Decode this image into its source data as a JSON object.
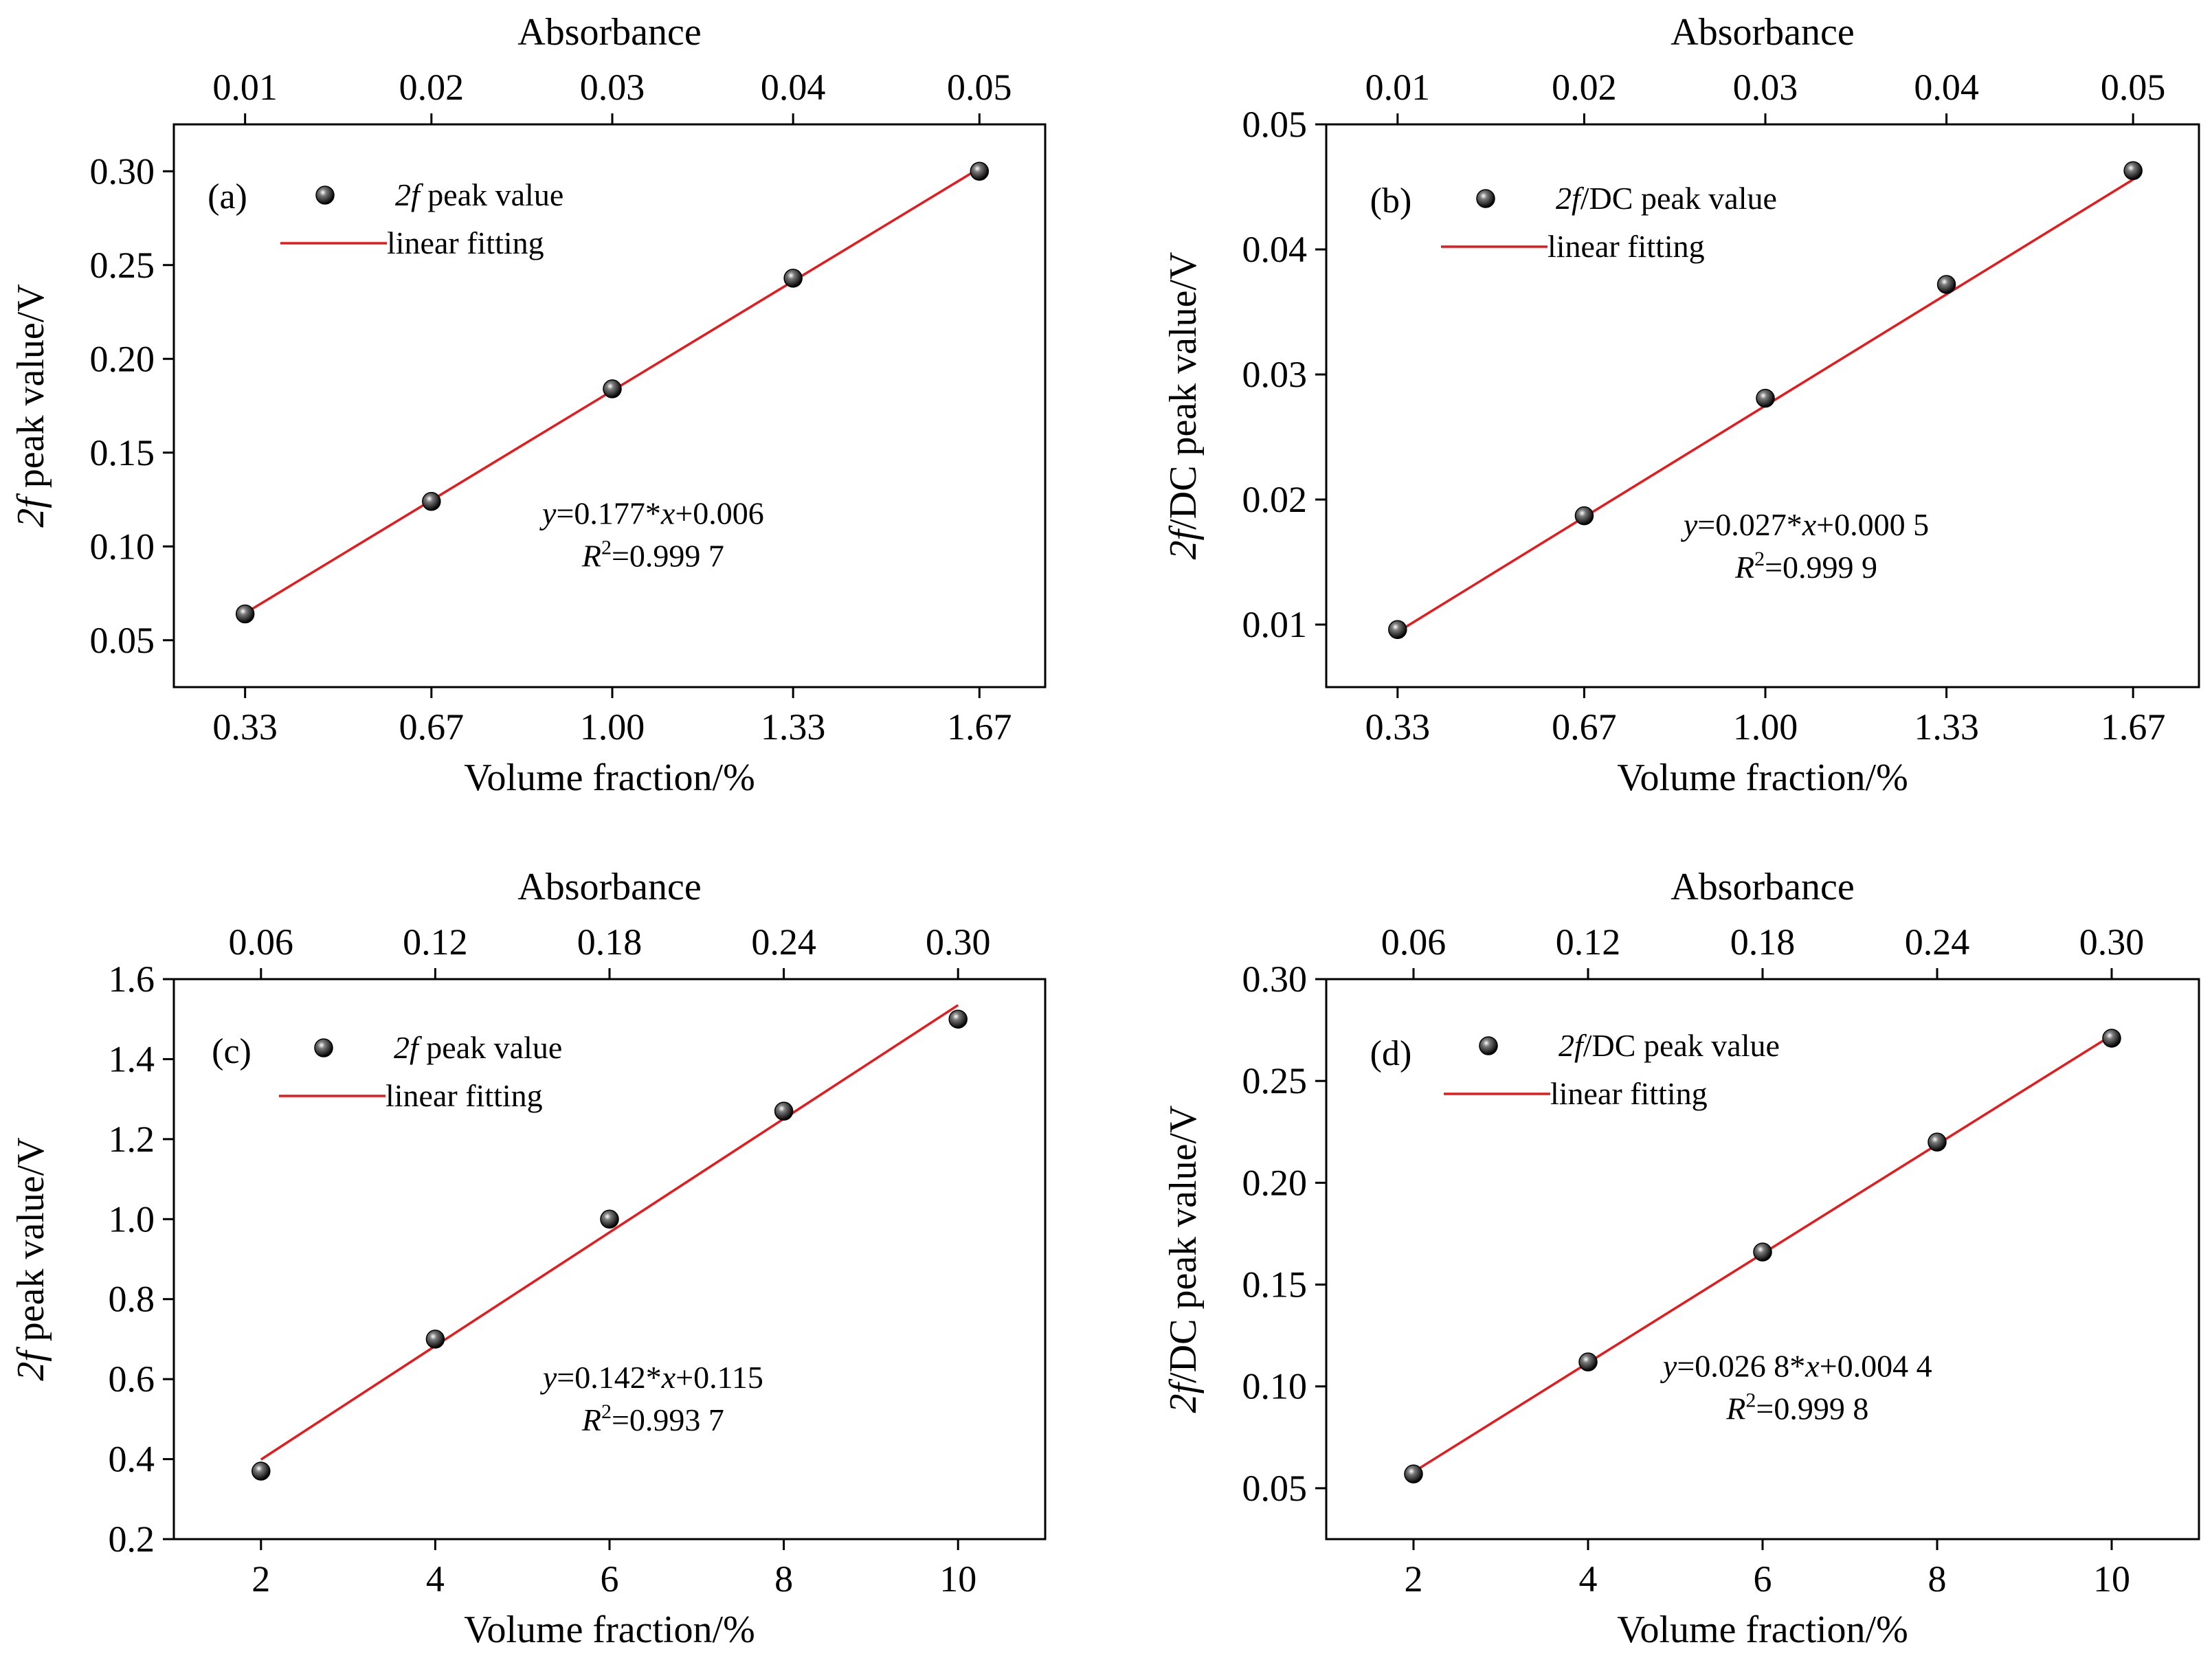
{
  "chart_data": [
    {
      "type": "scatter",
      "panel_label": "(a)",
      "xlabel": "Volume fraction/%",
      "ylabel": "2f peak value/V",
      "ylabel_italic": "2f",
      "ylabel_rest": " peak value/V",
      "top_xlabel": "Absorbance",
      "x_ticks": [
        0.33,
        0.67,
        1.0,
        1.33,
        1.67
      ],
      "x_tick_labels": [
        "0.33",
        "0.67",
        "1.00",
        "1.33",
        "1.67"
      ],
      "xlim": [
        0.2,
        1.79
      ],
      "top_tick_labels": [
        "0.01",
        "0.02",
        "0.03",
        "0.04",
        "0.05"
      ],
      "y_ticks": [
        0.05,
        0.1,
        0.15,
        0.2,
        0.25,
        0.3
      ],
      "y_tick_labels": [
        "0.05",
        "0.10",
        "0.15",
        "0.20",
        "0.25",
        "0.30"
      ],
      "ylim": [
        0.025,
        0.325
      ],
      "grid": false,
      "legend_position": "top-left",
      "series": [
        {
          "name": "2f peak value",
          "name_italic": "2f",
          "name_rest": " peak value",
          "kind": "points",
          "color": "#000000",
          "x": [
            0.33,
            0.67,
            1.0,
            1.33,
            1.67
          ],
          "y": [
            0.064,
            0.124,
            0.184,
            0.243,
            0.3
          ]
        },
        {
          "name": "linear fitting",
          "kind": "fit",
          "color": "#e41a1c",
          "slope": 0.177,
          "intercept": 0.006,
          "x_range": [
            0.33,
            1.67
          ]
        }
      ],
      "equation": {
        "y_label": "y",
        "rest": "=0.177*",
        "x_label": "x",
        "tail": "+0.006",
        "r_label": "R",
        "r_exp": "2",
        "r_value": "=0.999 7"
      }
    },
    {
      "type": "scatter",
      "panel_label": "(b)",
      "xlabel": "Volume fraction/%",
      "ylabel": "2f/DC peak value/V",
      "ylabel_italic": "2f",
      "ylabel_rest": "/DC peak value/V",
      "top_xlabel": "Absorbance",
      "x_ticks": [
        0.33,
        0.67,
        1.0,
        1.33,
        1.67
      ],
      "x_tick_labels": [
        "0.33",
        "0.67",
        "1.00",
        "1.33",
        "1.67"
      ],
      "xlim": [
        0.2,
        1.79
      ],
      "top_tick_labels": [
        "0.01",
        "0.02",
        "0.03",
        "0.04",
        "0.05"
      ],
      "y_ticks": [
        0.01,
        0.02,
        0.03,
        0.04,
        0.05
      ],
      "y_tick_labels": [
        "0.01",
        "0.02",
        "0.03",
        "0.04",
        "0.05"
      ],
      "ylim": [
        0.005,
        0.05
      ],
      "grid": false,
      "legend_position": "top-left",
      "series": [
        {
          "name": "2f/DC peak value",
          "name_italic": "2f",
          "name_rest": "/DC peak value",
          "kind": "points",
          "color": "#000000",
          "x": [
            0.33,
            0.67,
            1.0,
            1.33,
            1.67
          ],
          "y": [
            0.0096,
            0.0187,
            0.0281,
            0.0372,
            0.0463
          ]
        },
        {
          "name": "linear fitting",
          "kind": "fit",
          "color": "#e41a1c",
          "slope": 0.027,
          "intercept": 0.0005,
          "x_range": [
            0.33,
            1.67
          ]
        }
      ],
      "equation": {
        "y_label": "y",
        "rest": "=0.027*",
        "x_label": "x",
        "tail": "+0.000 5",
        "r_label": "R",
        "r_exp": "2",
        "r_value": "=0.999 9"
      }
    },
    {
      "type": "scatter",
      "panel_label": "(c)",
      "xlabel": "Volume fraction/%",
      "ylabel": "2f peak value/V",
      "ylabel_italic": "2f",
      "ylabel_rest": " peak value/V",
      "top_xlabel": "Absorbance",
      "x_ticks": [
        2,
        4,
        6,
        8,
        10
      ],
      "x_tick_labels": [
        "2",
        "4",
        "6",
        "8",
        "10"
      ],
      "xlim": [
        1.0,
        11.0
      ],
      "top_tick_labels": [
        "0.06",
        "0.12",
        "0.18",
        "0.24",
        "0.30"
      ],
      "y_ticks": [
        0.2,
        0.4,
        0.6,
        0.8,
        1.0,
        1.2,
        1.4,
        1.6
      ],
      "y_tick_labels": [
        "0.2",
        "0.4",
        "0.6",
        "0.8",
        "1.0",
        "1.2",
        "1.4",
        "1.6"
      ],
      "ylim": [
        0.2,
        1.6
      ],
      "grid": false,
      "legend_position": "top-left",
      "series": [
        {
          "name": "2f peak value",
          "name_italic": "2f",
          "name_rest": " peak value",
          "kind": "points",
          "color": "#000000",
          "x": [
            2,
            4,
            6,
            8,
            10
          ],
          "y": [
            0.37,
            0.7,
            1.0,
            1.27,
            1.5
          ]
        },
        {
          "name": "linear fitting",
          "kind": "fit",
          "color": "#e41a1c",
          "slope": 0.142,
          "intercept": 0.115,
          "x_range": [
            2,
            10
          ]
        }
      ],
      "equation": {
        "y_label": "y",
        "rest": "=0.142*",
        "x_label": "x",
        "tail": "+0.115",
        "r_label": "R",
        "r_exp": "2",
        "r_value": "=0.993 7"
      }
    },
    {
      "type": "scatter",
      "panel_label": "(d)",
      "xlabel": "Volume fraction/%",
      "ylabel": "2f/DC peak value/V",
      "ylabel_italic": "2f",
      "ylabel_rest": "/DC peak value/V",
      "top_xlabel": "Absorbance",
      "x_ticks": [
        2,
        4,
        6,
        8,
        10
      ],
      "x_tick_labels": [
        "2",
        "4",
        "6",
        "8",
        "10"
      ],
      "xlim": [
        1.0,
        11.0
      ],
      "top_tick_labels": [
        "0.06",
        "0.12",
        "0.18",
        "0.24",
        "0.30"
      ],
      "y_ticks": [
        0.05,
        0.1,
        0.15,
        0.2,
        0.25,
        0.3
      ],
      "y_tick_labels": [
        "0.05",
        "0.10",
        "0.15",
        "0.20",
        "0.25",
        "0.30"
      ],
      "ylim": [
        0.025,
        0.3
      ],
      "grid": false,
      "legend_position": "top-left",
      "series": [
        {
          "name": "2f/DC peak value",
          "name_italic": "2f",
          "name_rest": "/DC peak value",
          "kind": "points",
          "color": "#000000",
          "x": [
            2,
            4,
            6,
            8,
            10
          ],
          "y": [
            0.057,
            0.112,
            0.166,
            0.22,
            0.271
          ]
        },
        {
          "name": "linear fitting",
          "kind": "fit",
          "color": "#e41a1c",
          "slope": 0.0268,
          "intercept": 0.0044,
          "x_range": [
            2,
            10
          ]
        }
      ],
      "equation": {
        "y_label": "y",
        "rest": "=0.026 8*",
        "x_label": "x",
        "tail": "+0.004 4",
        "r_label": "R",
        "r_exp": "2",
        "r_value": "=0.999 8"
      }
    }
  ]
}
